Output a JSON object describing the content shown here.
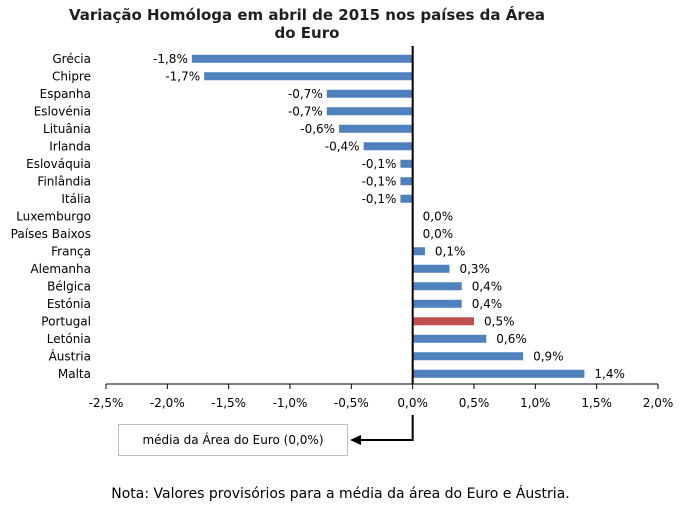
{
  "chart_data": {
    "type": "bar",
    "orientation": "horizontal",
    "title_line1": "Variação Homóloga em abril de 2015 nos países da Área",
    "title_line2": "do Euro",
    "categories": [
      "Grécia",
      "Chipre",
      "Espanha",
      "Eslovénia",
      "Lituânia",
      "Irlanda",
      "Eslováquia",
      "Finlândia",
      "Itália",
      "Luxemburgo",
      "Países Baixos",
      "França",
      "Alemanha",
      "Bélgica",
      "Estónia",
      "Portugal",
      "Letónia",
      "Áustria",
      "Malta"
    ],
    "values": [
      -1.8,
      -1.7,
      -0.7,
      -0.7,
      -0.6,
      -0.4,
      -0.1,
      -0.1,
      -0.1,
      0.0,
      0.0,
      0.1,
      0.3,
      0.4,
      0.4,
      0.5,
      0.6,
      0.9,
      1.4
    ],
    "value_labels": [
      "-1,8%",
      "-1,7%",
      "-0,7%",
      "-0,7%",
      "-0,6%",
      "-0,4%",
      "-0,1%",
      "-0,1%",
      "-0,1%",
      "0,0%",
      "0,0%",
      "0,1%",
      "0,3%",
      "0,4%",
      "0,4%",
      "0,5%",
      "0,6%",
      "0,9%",
      "1,4%"
    ],
    "highlight": "Portugal",
    "xlim": [
      -2.5,
      2.0
    ],
    "x_ticks": [
      -2.5,
      -2.0,
      -1.5,
      -1.0,
      -0.5,
      0.0,
      0.5,
      1.0,
      1.5,
      2.0
    ],
    "x_tick_labels": [
      "-2,5%",
      "-2,0%",
      "-1,5%",
      "-1,0%",
      "-0,5%",
      "0,0%",
      "0,5%",
      "1,0%",
      "1,5%",
      "2,0%"
    ],
    "grid": false,
    "colors": {
      "bar": "#4f81bd",
      "highlight": "#c0504d",
      "axis": "#000000"
    }
  },
  "annotation": {
    "average_label": "média da Área  do Euro (0,0%)"
  },
  "note": "Nota: Valores provisórios para a média da área do Euro e Áustria."
}
